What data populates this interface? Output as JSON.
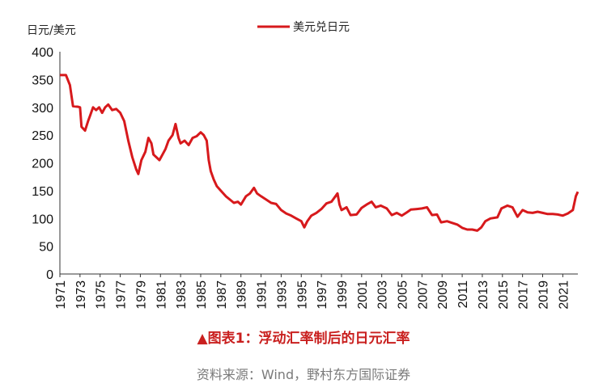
{
  "chart_data": {
    "type": "line",
    "ylabel": "日元/美元",
    "ylim": [
      0,
      400
    ],
    "yticks": [
      0,
      50,
      100,
      150,
      200,
      250,
      300,
      350,
      400
    ],
    "xlim": [
      1971,
      2022.5
    ],
    "xticks": [
      "1971",
      "1973",
      "1975",
      "1977",
      "1979",
      "1981",
      "1983",
      "1985",
      "1987",
      "1989",
      "1991",
      "1993",
      "1995",
      "1997",
      "1999",
      "2001",
      "2003",
      "2005",
      "2007",
      "2009",
      "2011",
      "2013",
      "2015",
      "2017",
      "2019",
      "2021"
    ],
    "legend_position": "top-center",
    "series": [
      {
        "name": "美元兑日元",
        "color": "#d7191c",
        "x": [
          1971.0,
          1971.6,
          1972.0,
          1972.3,
          1972.8,
          1973.0,
          1973.15,
          1973.5,
          1973.8,
          1974.0,
          1974.3,
          1974.6,
          1974.9,
          1975.2,
          1975.5,
          1975.8,
          1976.2,
          1976.6,
          1977.0,
          1977.4,
          1977.8,
          1978.2,
          1978.6,
          1978.8,
          1979.1,
          1979.5,
          1979.8,
          1980.1,
          1980.3,
          1980.6,
          1980.9,
          1981.2,
          1981.5,
          1981.8,
          1982.2,
          1982.5,
          1982.8,
          1983.0,
          1983.4,
          1983.8,
          1984.2,
          1984.6,
          1985.0,
          1985.3,
          1985.6,
          1985.8,
          1986.0,
          1986.3,
          1986.6,
          1987.0,
          1987.5,
          1987.9,
          1988.3,
          1988.7,
          1989.0,
          1989.5,
          1989.9,
          1990.3,
          1990.6,
          1991.0,
          1991.5,
          1992.0,
          1992.5,
          1993.0,
          1993.5,
          1994.0,
          1994.5,
          1995.0,
          1995.3,
          1995.6,
          1996.0,
          1996.5,
          1997.0,
          1997.5,
          1998.0,
          1998.4,
          1998.6,
          1998.8,
          1999.0,
          1999.5,
          1999.9,
          2000.5,
          2001.0,
          2001.5,
          2002.0,
          2002.4,
          2002.9,
          2003.5,
          2004.0,
          2004.5,
          2005.0,
          2005.5,
          2005.9,
          2006.5,
          2007.0,
          2007.5,
          2008.0,
          2008.5,
          2008.9,
          2009.5,
          2010.0,
          2010.5,
          2011.0,
          2011.5,
          2012.0,
          2012.5,
          2012.9,
          2013.3,
          2013.8,
          2014.5,
          2014.9,
          2015.5,
          2016.0,
          2016.5,
          2017.0,
          2017.5,
          2018.0,
          2018.5,
          2019.0,
          2019.5,
          2020.0,
          2020.5,
          2021.0,
          2021.5,
          2022.0,
          2022.3,
          2022.5
        ],
        "y": [
          358,
          358,
          340,
          302,
          301,
          300,
          265,
          258,
          275,
          285,
          300,
          295,
          300,
          290,
          300,
          305,
          295,
          297,
          290,
          275,
          240,
          210,
          188,
          180,
          205,
          220,
          245,
          235,
          215,
          210,
          205,
          215,
          225,
          240,
          250,
          270,
          245,
          235,
          240,
          232,
          245,
          248,
          255,
          250,
          240,
          205,
          185,
          170,
          158,
          150,
          140,
          134,
          128,
          130,
          125,
          140,
          145,
          155,
          145,
          140,
          134,
          128,
          126,
          115,
          109,
          105,
          100,
          95,
          84,
          95,
          105,
          110,
          117,
          127,
          130,
          140,
          145,
          125,
          115,
          120,
          106,
          107,
          119,
          125,
          130,
          120,
          123,
          118,
          106,
          110,
          105,
          111,
          116,
          117,
          118,
          120,
          106,
          107,
          93,
          95,
          92,
          89,
          83,
          80,
          80,
          78,
          84,
          95,
          100,
          102,
          118,
          123,
          120,
          103,
          115,
          111,
          110,
          112,
          110,
          108,
          108,
          107,
          105,
          109,
          115,
          140,
          148
        ]
      }
    ]
  },
  "caption": "▲图表1：浮动汇率制后的日元汇率",
  "source": "资料来源：Wind，野村东方国际证券"
}
